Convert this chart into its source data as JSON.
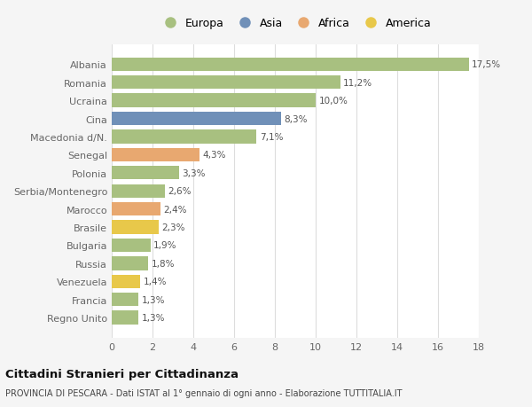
{
  "countries": [
    "Albania",
    "Romania",
    "Ucraina",
    "Cina",
    "Macedonia d/N.",
    "Senegal",
    "Polonia",
    "Serbia/Montenegro",
    "Marocco",
    "Brasile",
    "Bulgaria",
    "Russia",
    "Venezuela",
    "Francia",
    "Regno Unito"
  ],
  "values": [
    17.5,
    11.2,
    10.0,
    8.3,
    7.1,
    4.3,
    3.3,
    2.6,
    2.4,
    2.3,
    1.9,
    1.8,
    1.4,
    1.3,
    1.3
  ],
  "labels": [
    "17,5%",
    "11,2%",
    "10,0%",
    "8,3%",
    "7,1%",
    "4,3%",
    "3,3%",
    "2,6%",
    "2,4%",
    "2,3%",
    "1,9%",
    "1,8%",
    "1,4%",
    "1,3%",
    "1,3%"
  ],
  "colors": [
    "#a8c080",
    "#a8c080",
    "#a8c080",
    "#7090b8",
    "#a8c080",
    "#e8a870",
    "#a8c080",
    "#a8c080",
    "#e8a870",
    "#e8c84a",
    "#a8c080",
    "#a8c080",
    "#e8c84a",
    "#a8c080",
    "#a8c080"
  ],
  "legend_labels": [
    "Europa",
    "Asia",
    "Africa",
    "America"
  ],
  "legend_colors": [
    "#a8c080",
    "#7090b8",
    "#e8a870",
    "#e8c84a"
  ],
  "xlim": [
    0,
    18
  ],
  "xticks": [
    0,
    2,
    4,
    6,
    8,
    10,
    12,
    14,
    16,
    18
  ],
  "title": "Cittadini Stranieri per Cittadinanza",
  "subtitle": "PROVINCIA DI PESCARA - Dati ISTAT al 1° gennaio di ogni anno - Elaborazione TUTTITALIA.IT",
  "fig_bg_color": "#f5f5f5",
  "plot_bg_color": "#ffffff",
  "grid_color": "#dddddd",
  "label_color": "#666666",
  "value_label_color": "#555555"
}
